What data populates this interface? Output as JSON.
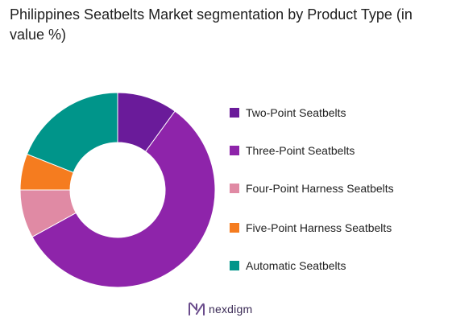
{
  "title": "Philippines Seatbelts Market segmentation by Product Type (in value %)",
  "brand": {
    "name": "nexdigm",
    "logo_icon": "nexdigm-logo-icon",
    "logo_color": "#6a4c8c"
  },
  "chart_data": {
    "type": "pie",
    "variant": "donut",
    "title": "Philippines Seatbelts Market segmentation by Product Type (in value %)",
    "legend_position": "right",
    "categories": [
      "Two-Point Seatbelts",
      "Three-Point Seatbelts",
      "Four-Point Harness Seatbelts",
      "Five-Point Harness Seatbelts",
      "Automatic Seatbelts"
    ],
    "values": [
      10,
      57,
      8,
      6,
      19
    ],
    "colors": [
      "#6a1b9a",
      "#8e24aa",
      "#e08aa4",
      "#f57c1f",
      "#00958a"
    ]
  }
}
